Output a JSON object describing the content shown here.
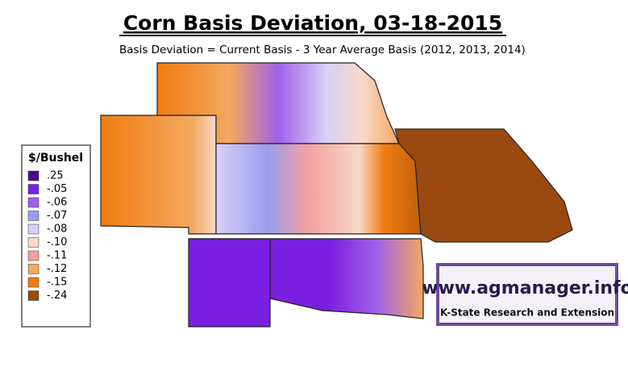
{
  "title": "Corn Basis Deviation, 03-18-2015",
  "subtitle": "Basis Deviation = Current Basis - 3 Year Average Basis (2012, 2013, 2014)",
  "legend": {
    "title": "$/Bushel",
    "items": [
      {
        "label": ".25",
        "color": "#4b0a8c"
      },
      {
        "label": "-.05",
        "color": "#7a1fe0"
      },
      {
        "label": "-.06",
        "color": "#a060e8"
      },
      {
        "label": "-.07",
        "color": "#9a9cf0"
      },
      {
        "label": "-.08",
        "color": "#d8d0f4"
      },
      {
        "label": "-.10",
        "color": "#f8d8c8"
      },
      {
        "label": "-.11",
        "color": "#f4a0a0"
      },
      {
        "label": "-.12",
        "color": "#f4a860"
      },
      {
        "label": "-.15",
        "color": "#f07c10"
      },
      {
        "label": "-.24",
        "color": "#9a4a10"
      }
    ]
  },
  "logo": {
    "url": "www.agmanager.info",
    "org": "K-State Research and Extension"
  }
}
